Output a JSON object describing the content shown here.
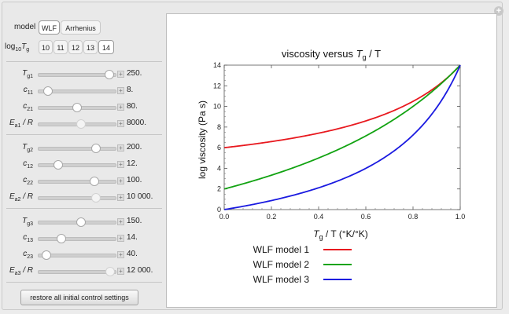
{
  "controls": {
    "model": {
      "label": "model",
      "options": [
        "WLF",
        "Arrhenius"
      ],
      "selected": "WLF"
    },
    "log10Tg": {
      "label_prefix": "log",
      "label_sub": "10",
      "label_var": "T",
      "label_var_sub": "g",
      "options": [
        "10",
        "11",
        "12",
        "13",
        "14"
      ],
      "selected": "14"
    },
    "groups": [
      {
        "sliders": [
          {
            "sym": "T",
            "sub": "g1",
            "suffix": "",
            "value": "250.",
            "fraction": 0.92,
            "dim": false
          },
          {
            "sym": "c",
            "sub": "11",
            "suffix": "",
            "value": "8.",
            "fraction": 0.12,
            "dim": false
          },
          {
            "sym": "c",
            "sub": "21",
            "suffix": "",
            "value": "80.",
            "fraction": 0.5,
            "dim": false
          },
          {
            "sym": "E",
            "sub": "a1",
            "suffix": " / R",
            "value": "8000.",
            "fraction": 0.55,
            "dim": true
          }
        ]
      },
      {
        "sliders": [
          {
            "sym": "T",
            "sub": "g2",
            "suffix": "",
            "value": "200.",
            "fraction": 0.74,
            "dim": false
          },
          {
            "sym": "c",
            "sub": "12",
            "suffix": "",
            "value": "12.",
            "fraction": 0.25,
            "dim": false
          },
          {
            "sym": "c",
            "sub": "22",
            "suffix": "",
            "value": "100.",
            "fraction": 0.72,
            "dim": false
          },
          {
            "sym": "E",
            "sub": "a2",
            "suffix": " / R",
            "value": "10 000.",
            "fraction": 0.74,
            "dim": true
          }
        ]
      },
      {
        "sliders": [
          {
            "sym": "T",
            "sub": "g3",
            "suffix": "",
            "value": "150.",
            "fraction": 0.55,
            "dim": false
          },
          {
            "sym": "c",
            "sub": "13",
            "suffix": "",
            "value": "14.",
            "fraction": 0.3,
            "dim": false
          },
          {
            "sym": "c",
            "sub": "23",
            "suffix": "",
            "value": "40.",
            "fraction": 0.1,
            "dim": false
          },
          {
            "sym": "E",
            "sub": "a3",
            "suffix": " / R",
            "value": "12 000.",
            "fraction": 0.93,
            "dim": true
          }
        ]
      }
    ],
    "restore_label": "restore all initial control settings"
  },
  "chart_data": {
    "type": "line",
    "title_text": "viscosity versus ",
    "title_var": "T",
    "title_sub": "g",
    "title_tail": " / T",
    "xlabel_var": "T",
    "xlabel_sub": "g",
    "xlabel_tail": " / T (°K/°K)",
    "ylabel": "log viscosity (Pa s)",
    "xlim": [
      0,
      1
    ],
    "ylim": [
      0,
      14
    ],
    "xticks": [
      "0.0",
      "0.2",
      "0.4",
      "0.6",
      "0.8",
      "1.0"
    ],
    "yticks": [
      "0",
      "2",
      "4",
      "6",
      "8",
      "10",
      "12",
      "14"
    ],
    "legend_position": "bottom",
    "series": [
      {
        "name": "WLF model 1",
        "color": "#e8191f",
        "c1": 8,
        "c2": 80,
        "Tg": 250
      },
      {
        "name": "WLF model 2",
        "color": "#12a312",
        "c1": 12,
        "c2": 100,
        "Tg": 200
      },
      {
        "name": "WLF model 3",
        "color": "#1a1ae0",
        "c1": 14,
        "c2": 40,
        "Tg": 150
      }
    ]
  }
}
